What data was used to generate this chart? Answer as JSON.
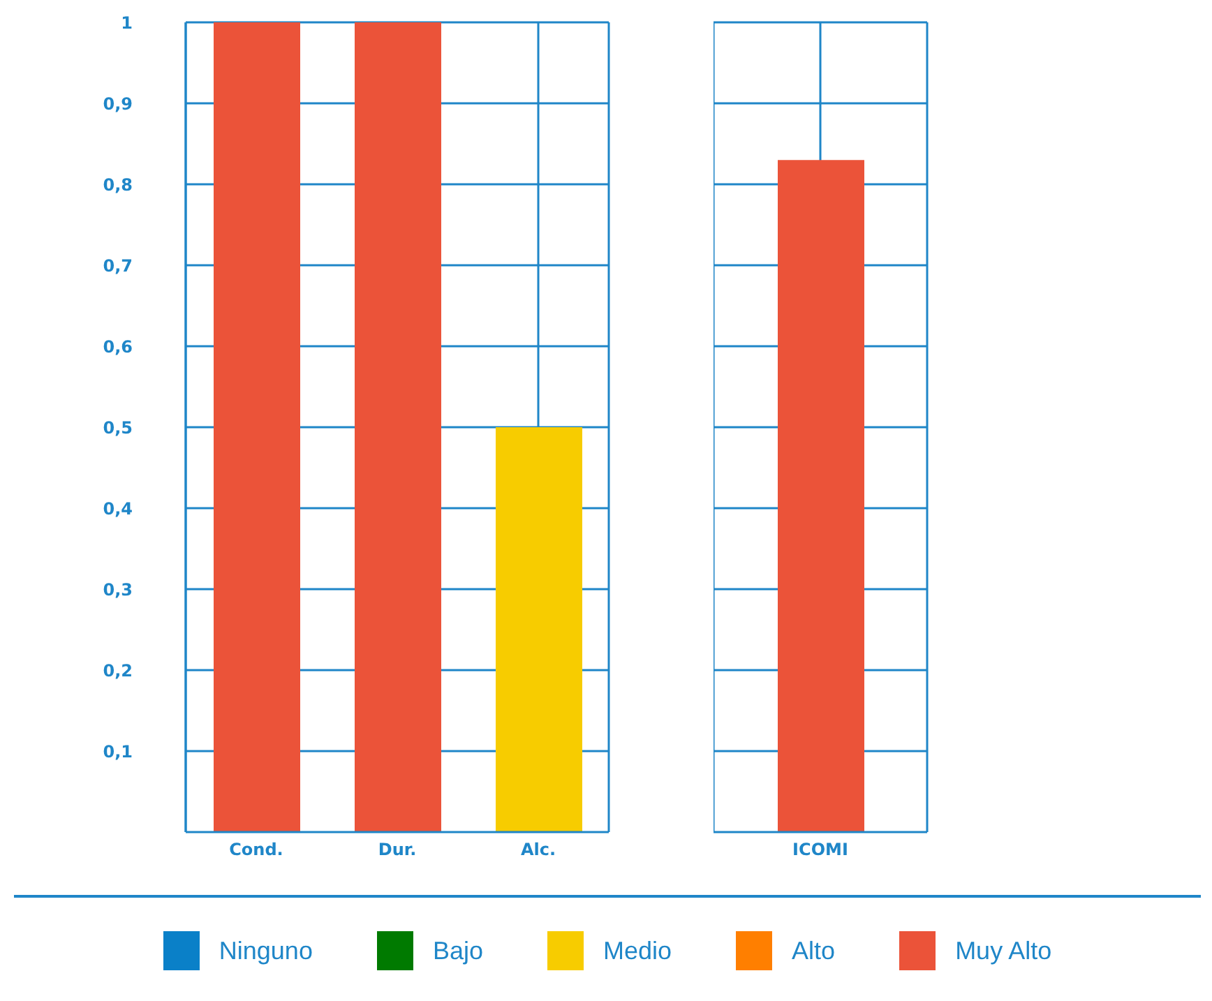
{
  "chart_data": [
    {
      "type": "bar",
      "categories": [
        "Cond.",
        "Dur.",
        "Alc."
      ],
      "stacked": true,
      "ylim": [
        0,
        1
      ],
      "yticks": [
        {
          "value": 0.1,
          "label": "0,1"
        },
        {
          "value": 0.2,
          "label": "0,2"
        },
        {
          "value": 0.3,
          "label": "0,3"
        },
        {
          "value": 0.4,
          "label": "0,4"
        },
        {
          "value": 0.5,
          "label": "0,5"
        },
        {
          "value": 0.6,
          "label": "0,6"
        },
        {
          "value": 0.7,
          "label": "0,7"
        },
        {
          "value": 0.8,
          "label": "0,8"
        },
        {
          "value": 0.9,
          "label": "0,9"
        },
        1
      ],
      "grid": true,
      "legend": "bottom",
      "series": [
        {
          "name": "Ninguno",
          "color": "#0a80c8",
          "values": [
            null,
            null,
            null
          ]
        },
        {
          "name": "Bajo",
          "color": "#007a00",
          "values": [
            null,
            null,
            null
          ]
        },
        {
          "name": "Medio",
          "color": "#f7cc00",
          "values": [
            null,
            null,
            0.5
          ]
        },
        {
          "name": "Alto",
          "color": "#ff7f00",
          "values": [
            null,
            null,
            null
          ]
        },
        {
          "name": "Muy Alto",
          "color": "#eb5339",
          "values": [
            1,
            1,
            null
          ]
        }
      ]
    },
    {
      "type": "bar",
      "categories": [
        "ICOMI"
      ],
      "ylim": [
        0,
        1
      ],
      "yticks": [
        0.1,
        0.2,
        0.3,
        0.4,
        0.5,
        0.6,
        0.7,
        0.8,
        0.9,
        1
      ],
      "grid": true,
      "tick_labels": "x",
      "series": [
        {
          "color": "#eb5339",
          "values": [
            0.83
          ]
        }
      ]
    }
  ]
}
